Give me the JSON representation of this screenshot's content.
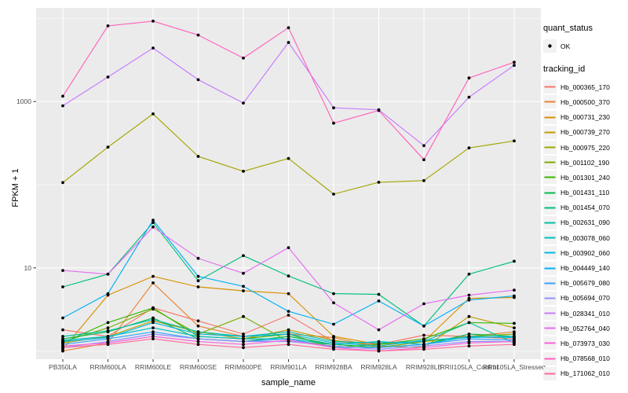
{
  "colors": {
    "panel_bg": "#EBEBEB",
    "grid": "#FFFFFF",
    "plot_bg": "#FFFFFF",
    "legend_key_bg": "#F2F2F2",
    "tick_text": "#4D4D4D",
    "tick_mark": "#333333",
    "point": "#000000"
  },
  "legend": {
    "quant_status_title": "quant_status",
    "quant_status_items": [
      {
        "label": "OK",
        "marker": "black-point"
      }
    ],
    "tracking_id_title": "tracking_id"
  },
  "chart_data": {
    "type": "line",
    "title": "",
    "xlabel": "sample_name",
    "ylabel": "FPKM + 1",
    "y_scale": "log10",
    "ylim": [
      0.78,
      13400
    ],
    "grid": "on",
    "legend_position": "right",
    "y_major_ticks": [
      {
        "value": 10,
        "label": "10"
      },
      {
        "value": 1000,
        "label": "1000"
      }
    ],
    "y_minor_gridlines": [
      1,
      100,
      10000
    ],
    "categories": [
      "PB350LA",
      "RRIM600LA",
      "RRIM600LE",
      "RRIM600SE",
      "RRIM600PE",
      "RRIM901LA",
      "RRIM928BA",
      "RRIM928LA",
      "RRIM928LE",
      "RRII105LA_Control",
      "RRII105LA_Stressed"
    ],
    "point_marker": "black-dot",
    "series": [
      {
        "name": "Hb_000365_170",
        "color": "#F8766D",
        "values": [
          1.8,
          1.5,
          3.3,
          2.3,
          1.6,
          2.7,
          1.3,
          1.2,
          1.55,
          1.5,
          1.4
        ]
      },
      {
        "name": "Hb_000500_370",
        "color": "#EA8331",
        "values": [
          1.0,
          1.25,
          6.6,
          2.0,
          1.5,
          1.6,
          1.45,
          1.1,
          1.3,
          1.5,
          1.7
        ]
      },
      {
        "name": "Hb_000731_230",
        "color": "#D89000",
        "values": [
          1.05,
          4.7,
          7.9,
          5.9,
          5.3,
          4.9,
          1.5,
          1.2,
          1.3,
          4.3,
          4.4
        ]
      },
      {
        "name": "Hb_000739_270",
        "color": "#C09B00",
        "values": [
          1.25,
          1.5,
          2.3,
          1.7,
          1.4,
          1.8,
          1.35,
          1.15,
          1.1,
          2.6,
          1.9
        ]
      },
      {
        "name": "Hb_000975_220",
        "color": "#A3A500",
        "values": [
          106,
          283,
          710,
          219,
          145,
          207,
          77,
          107,
          112,
          277,
          336
        ]
      },
      {
        "name": "Hb_001102_190",
        "color": "#7CAE00",
        "values": [
          1.3,
          1.9,
          3.2,
          1.6,
          2.6,
          1.3,
          1.2,
          1.1,
          1.3,
          1.5,
          1.6
        ]
      },
      {
        "name": "Hb_001301_240",
        "color": "#39B600",
        "values": [
          1.25,
          2.2,
          3.3,
          1.5,
          1.4,
          1.6,
          1.1,
          1.2,
          1.4,
          2.2,
          2.15
        ]
      },
      {
        "name": "Hb_001431_110",
        "color": "#00BB4E",
        "values": [
          1.4,
          1.7,
          2.5,
          1.4,
          1.3,
          1.5,
          1.2,
          1.1,
          1.2,
          1.6,
          1.5
        ]
      },
      {
        "name": "Hb_001454_070",
        "color": "#00BF7D",
        "values": [
          5.9,
          8.4,
          35,
          7.0,
          14,
          8.0,
          4.9,
          4.8,
          2.0,
          8.4,
          12
        ]
      },
      {
        "name": "Hb_002631_090",
        "color": "#00C1A3",
        "values": [
          1.5,
          1.75,
          2.4,
          1.7,
          1.5,
          1.7,
          1.3,
          1.25,
          1.3,
          2.2,
          1.25
        ]
      },
      {
        "name": "Hb_003078_060",
        "color": "#00BFC4",
        "values": [
          1.35,
          1.5,
          1.9,
          1.5,
          1.4,
          1.4,
          1.2,
          1.3,
          1.2,
          1.5,
          1.45
        ]
      },
      {
        "name": "Hb_003902_060",
        "color": "#00BAE0",
        "values": [
          1.3,
          1.45,
          2.2,
          1.6,
          1.5,
          1.6,
          1.25,
          1.15,
          1.35,
          1.45,
          1.5
        ]
      },
      {
        "name": "Hb_004449_140",
        "color": "#00B0F6",
        "values": [
          2.5,
          4.9,
          37.5,
          7.9,
          6.0,
          3.0,
          2.1,
          4.0,
          2.0,
          4.1,
          4.6
        ]
      },
      {
        "name": "Hb_005679_080",
        "color": "#35A2FF",
        "values": [
          1.2,
          1.4,
          1.7,
          1.4,
          1.3,
          1.4,
          1.1,
          1.1,
          1.2,
          1.4,
          1.35
        ]
      },
      {
        "name": "Hb_005694_070",
        "color": "#9590FF",
        "values": [
          1.1,
          1.3,
          1.6,
          1.4,
          1.3,
          1.3,
          1.15,
          1.05,
          1.15,
          1.3,
          1.3
        ]
      },
      {
        "name": "Hb_028341_010",
        "color": "#C77CFF",
        "values": [
          890,
          1970,
          4400,
          1830,
          960,
          5140,
          840,
          795,
          295,
          1130,
          2730
        ]
      },
      {
        "name": "Hb_052764_040",
        "color": "#E76BF3",
        "values": [
          9.3,
          8.4,
          31,
          13,
          8.6,
          17.5,
          3.8,
          1.8,
          3.7,
          4.7,
          5.4
        ]
      },
      {
        "name": "Hb_073973_030",
        "color": "#FA62DB",
        "values": [
          1.15,
          1.25,
          1.5,
          1.3,
          1.2,
          1.35,
          1.1,
          1.0,
          1.1,
          1.25,
          1.3
        ]
      },
      {
        "name": "Hb_078568_010",
        "color": "#FF62BC",
        "values": [
          1160,
          8130,
          9260,
          6300,
          3330,
          7720,
          550,
          780,
          200,
          1920,
          2970
        ]
      },
      {
        "name": "Hb_171062_010",
        "color": "#FF6A98",
        "values": [
          1.1,
          1.2,
          1.4,
          1.2,
          1.1,
          1.2,
          1.05,
          1.0,
          1.05,
          1.15,
          1.2
        ]
      }
    ]
  }
}
